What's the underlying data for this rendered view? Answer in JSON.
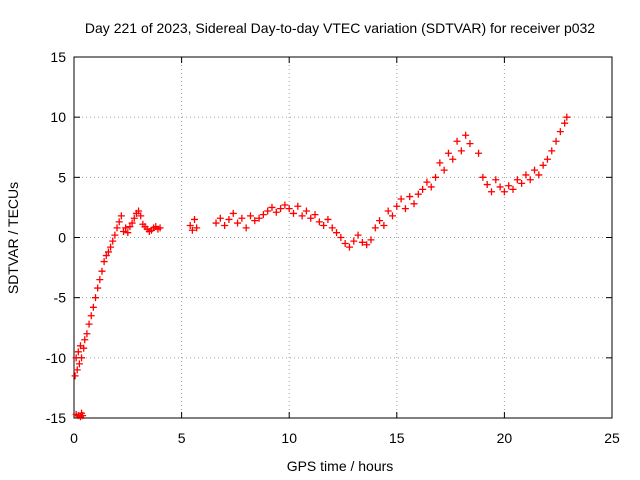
{
  "chart_data": {
    "type": "scatter",
    "title": "Day 221 of 2023, Sidereal Day-to-day VTEC variation (SDTVAR) for receiver p032",
    "xlabel": "GPS time / hours",
    "ylabel": "SDTVAR / TECUs",
    "xlim": [
      0,
      25
    ],
    "ylim": [
      -15,
      15
    ],
    "xticks": [
      0,
      5,
      10,
      15,
      20,
      25
    ],
    "yticks": [
      -15,
      -10,
      -5,
      0,
      5,
      10,
      15
    ],
    "x_tick_labels": [
      "0",
      "5",
      "10",
      "15",
      "20",
      "25"
    ],
    "y_tick_labels": [
      "-15",
      "-10",
      "-5",
      "0",
      "5",
      "10",
      "15"
    ],
    "grid": true,
    "marker": "+",
    "series": [
      {
        "name": "SDTVAR",
        "color": "#ff0000",
        "x": [
          0.05,
          0.1,
          0.15,
          0.2,
          0.25,
          0.3,
          0.35,
          0.45,
          0.5,
          0.6,
          0.7,
          0.8,
          0.9,
          1.0,
          1.1,
          1.2,
          1.3,
          1.4,
          1.5,
          1.6,
          1.7,
          1.8,
          1.9,
          2.0,
          2.1,
          2.2,
          2.3,
          2.4,
          2.5,
          2.6,
          2.7,
          2.8,
          2.9,
          3.0,
          3.1,
          3.2,
          3.3,
          3.4,
          3.5,
          3.6,
          3.7,
          3.8,
          3.9,
          4.0,
          0.1,
          0.2,
          0.3,
          0.35,
          0.4,
          5.4,
          5.5,
          5.6,
          5.7,
          6.6,
          6.8,
          7.0,
          7.2,
          7.4,
          7.6,
          7.8,
          8.0,
          8.2,
          8.4,
          8.6,
          8.8,
          9.0,
          9.2,
          9.4,
          9.6,
          9.8,
          10.0,
          10.2,
          10.4,
          10.6,
          10.8,
          11.0,
          11.2,
          11.4,
          11.6,
          11.8,
          12.0,
          12.2,
          12.4,
          12.6,
          12.8,
          13.0,
          13.2,
          13.4,
          13.6,
          13.8,
          14.0,
          14.2,
          14.4,
          14.6,
          14.8,
          15.0,
          15.2,
          15.4,
          15.6,
          15.8,
          16.0,
          16.2,
          16.4,
          16.6,
          16.8,
          17.0,
          17.2,
          17.4,
          17.6,
          17.8,
          18.0,
          18.2,
          18.4,
          18.8,
          19.0,
          19.2,
          19.4,
          19.6,
          19.8,
          20.0,
          20.2,
          20.4,
          20.6,
          20.8,
          21.0,
          21.2,
          21.4,
          21.6,
          21.8,
          22.0,
          22.2,
          22.4,
          22.6,
          22.8,
          22.9
        ],
        "y": [
          -11.5,
          -10.0,
          -11.0,
          -9.5,
          -10.5,
          -9.0,
          -10.0,
          -9.2,
          -8.5,
          -8.0,
          -7.2,
          -6.5,
          -5.8,
          -5.0,
          -4.2,
          -3.5,
          -2.8,
          -2.0,
          -1.5,
          -1.2,
          -0.8,
          -0.3,
          0.2,
          0.8,
          1.3,
          1.8,
          0.5,
          0.8,
          0.4,
          0.9,
          1.2,
          1.6,
          2.0,
          2.2,
          1.8,
          1.1,
          0.9,
          0.7,
          0.5,
          0.6,
          0.8,
          0.9,
          0.7,
          0.8,
          -14.7,
          -14.8,
          -14.9,
          -14.6,
          -14.8,
          1.0,
          0.6,
          1.5,
          0.8,
          1.2,
          1.6,
          1.0,
          1.5,
          2.0,
          1.2,
          1.6,
          0.8,
          1.8,
          1.4,
          1.6,
          1.9,
          2.2,
          2.5,
          2.1,
          2.4,
          2.7,
          2.4,
          2.0,
          2.6,
          1.8,
          2.2,
          1.6,
          1.9,
          1.3,
          1.0,
          1.5,
          0.8,
          0.4,
          0.0,
          -0.5,
          -0.8,
          -0.3,
          0.2,
          -0.4,
          -0.6,
          -0.2,
          0.8,
          1.4,
          1.0,
          2.2,
          1.8,
          2.6,
          3.2,
          2.4,
          3.4,
          2.8,
          3.6,
          4.0,
          4.6,
          4.2,
          5.0,
          6.2,
          5.6,
          7.0,
          6.5,
          8.0,
          7.2,
          8.5,
          7.8,
          7.0,
          5.0,
          4.4,
          3.8,
          4.8,
          4.2,
          3.8,
          4.3,
          4.0,
          4.8,
          4.5,
          5.2,
          4.8,
          5.6,
          5.2,
          6.0,
          6.5,
          7.2,
          8.0,
          8.8,
          9.5,
          10.0
        ]
      }
    ]
  }
}
